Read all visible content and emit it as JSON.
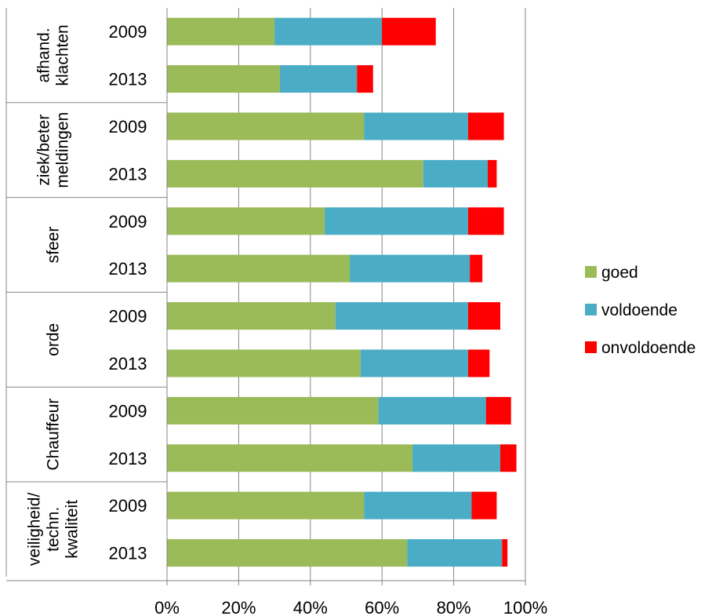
{
  "chart_data": {
    "type": "bar",
    "orientation": "horizontal",
    "stacked": true,
    "xlim": [
      0,
      100
    ],
    "x_unit": "%",
    "x_ticks": [
      "0%",
      "20%",
      "40%",
      "60%",
      "80%",
      "100%"
    ],
    "grid": "vertical",
    "legend_position": "right",
    "groups": [
      {
        "label_lines": [
          "afhand.",
          "klachten"
        ],
        "years": [
          "2009",
          "2013"
        ]
      },
      {
        "label_lines": [
          "ziek/beter",
          "meldingen"
        ],
        "years": [
          "2009",
          "2013"
        ]
      },
      {
        "label_lines": [
          "sfeer"
        ],
        "years": [
          "2009",
          "2013"
        ]
      },
      {
        "label_lines": [
          "orde"
        ],
        "years": [
          "2009",
          "2013"
        ]
      },
      {
        "label_lines": [
          "Chauffeur"
        ],
        "years": [
          "2009",
          "2013"
        ]
      },
      {
        "label_lines": [
          "veiligheid/",
          "techn.",
          "kwaliteit"
        ],
        "years": [
          "2009",
          "2013"
        ]
      }
    ],
    "series": [
      {
        "name": "goed",
        "color": "#9bbb59",
        "values": [
          30,
          31.5,
          55,
          71.5,
          44,
          51,
          47,
          54,
          59,
          68.5,
          55,
          67
        ]
      },
      {
        "name": "voldoende",
        "color": "#4bacc6",
        "values": [
          30,
          21.5,
          29,
          18,
          40,
          33.5,
          37,
          30,
          30,
          24.5,
          30,
          26.5
        ]
      },
      {
        "name": "onvoldoende",
        "color": "#ff0000",
        "values": [
          15,
          4.5,
          10,
          2.5,
          10,
          3.5,
          9,
          6,
          7,
          4.5,
          7,
          1.5
        ]
      }
    ]
  }
}
